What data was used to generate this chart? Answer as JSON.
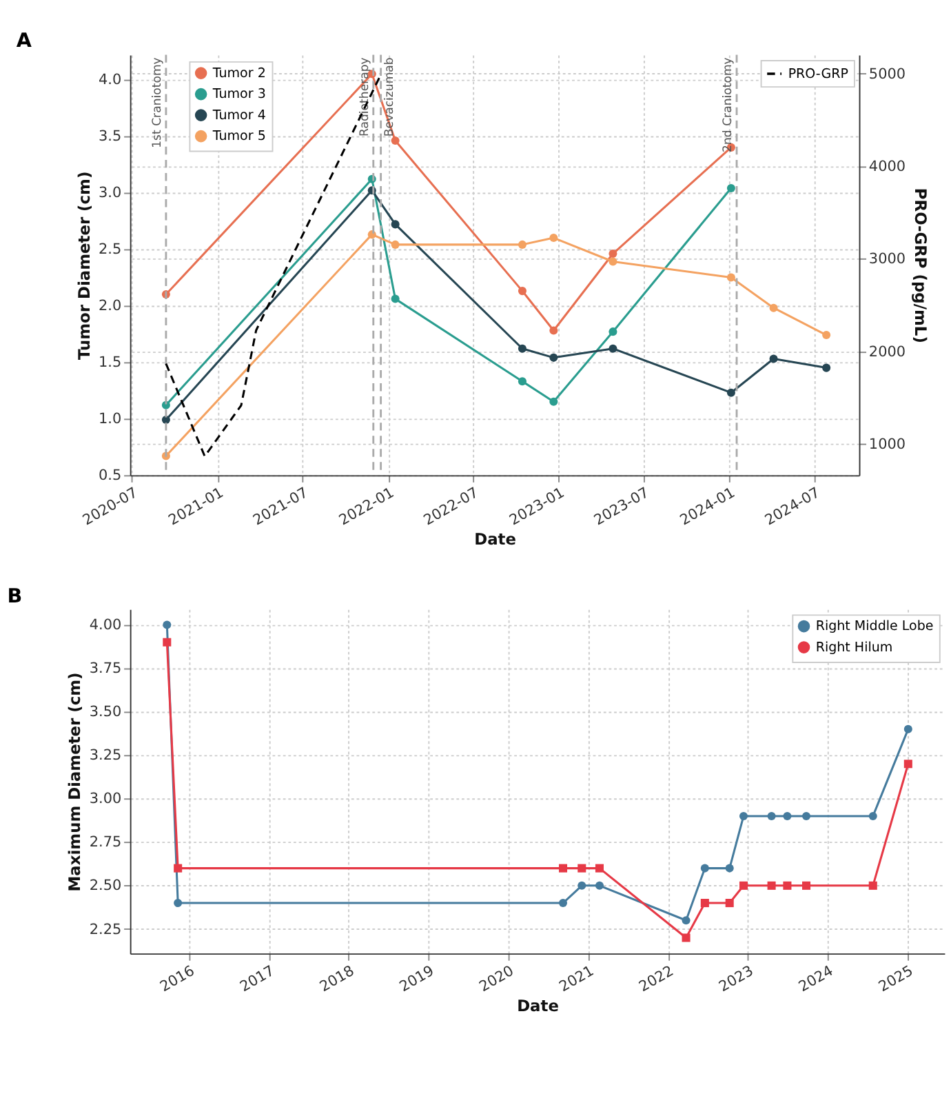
{
  "chart_data": [
    {
      "type": "line",
      "title": "A",
      "xlabel": "Date",
      "ylabel": "Tumor Diameter (cm)",
      "y2label": "PRO-GRP (pg/mL)",
      "xlim": [
        "2020-06-27",
        "2024-10-05"
      ],
      "xticks": [
        {
          "value": "2020-07-01",
          "label": "2020-07"
        },
        {
          "value": "2021-01-01",
          "label": "2021-01"
        },
        {
          "value": "2021-07-01",
          "label": "2021-07"
        },
        {
          "value": "2022-01-01",
          "label": "2022-01"
        },
        {
          "value": "2022-07-01",
          "label": "2022-07"
        },
        {
          "value": "2023-01-01",
          "label": "2023-01"
        },
        {
          "value": "2023-07-01",
          "label": "2023-07"
        },
        {
          "value": "2024-01-01",
          "label": "2024-01"
        },
        {
          "value": "2024-07-01",
          "label": "2024-07"
        }
      ],
      "ylim": [
        0.5,
        4.22
      ],
      "yticks": [
        0.5,
        {
          "value": 1,
          "label": "1.0"
        },
        1.5,
        {
          "value": 2,
          "label": "2.0"
        },
        2.5,
        {
          "value": 3,
          "label": "3.0"
        },
        3.5,
        {
          "value": 4,
          "label": "4.0"
        }
      ],
      "y2lim": [
        666,
        5205
      ],
      "y2ticks": [
        1000,
        2000,
        3000,
        4000,
        5000
      ],
      "grid": true,
      "legend": "top left",
      "marker": "circle",
      "line_style": "solid",
      "series": [
        {
          "name": "Tumor 2",
          "color": "#e76f51",
          "x": [
            "2020-09-12",
            "2021-11-27",
            "2022-01-16",
            "2022-10-15",
            "2022-12-21",
            "2023-04-27",
            "2024-01-05"
          ],
          "values": [
            2.1,
            4.05,
            3.46,
            2.13,
            1.78,
            2.46,
            3.4
          ]
        },
        {
          "name": "Tumor 3",
          "color": "#2a9d8f",
          "x": [
            "2020-09-12",
            "2021-11-27",
            "2022-01-16",
            "2022-10-15",
            "2022-12-21",
            "2023-04-27",
            "2024-01-05"
          ],
          "values": [
            1.12,
            3.12,
            2.06,
            1.33,
            1.15,
            1.77,
            3.04
          ]
        },
        {
          "name": "Tumor 4",
          "color": "#264653",
          "x": [
            "2020-09-12",
            "2021-11-27",
            "2022-01-16",
            "2022-10-15",
            "2022-12-21",
            "2023-04-27",
            "2024-01-05",
            "2024-04-05",
            "2024-07-27"
          ],
          "values": [
            0.99,
            3.02,
            2.72,
            1.62,
            1.54,
            1.62,
            1.23,
            1.53,
            1.45
          ]
        },
        {
          "name": "Tumor 5",
          "color": "#f4a261",
          "x": [
            "2020-09-12",
            "2021-11-27",
            "2022-01-16",
            "2022-10-15",
            "2022-12-21",
            "2023-04-27",
            "2024-01-05",
            "2024-04-05",
            "2024-07-27"
          ],
          "values": [
            0.67,
            2.63,
            2.54,
            2.54,
            2.6,
            2.39,
            2.25,
            1.98,
            1.74
          ]
        },
        {
          "name": "PRO-GRP",
          "color": "#000000",
          "axis": "y2",
          "marker": "none",
          "line_style": "dashed",
          "x": [
            "2020-09-12",
            "2020-12-04",
            "2021-02-20",
            "2021-03-24",
            "2021-12-14"
          ],
          "values": [
            1870,
            870,
            1420,
            2230,
            4970
          ]
        }
      ],
      "ref_lines": [
        {
          "axis": "x",
          "value": "2020-09-12",
          "label": "1st Craniotomy",
          "color": "#aaaaaa",
          "line_style": "dashed"
        },
        {
          "axis": "x",
          "value": "2021-11-30",
          "label": "Radiotherapy",
          "color": "#aaaaaa",
          "line_style": "dashed"
        },
        {
          "axis": "x",
          "value": "2021-12-16",
          "label": "Bevacizumab",
          "color": "#aaaaaa",
          "line_style": "dashed"
        },
        {
          "axis": "x",
          "value": "2024-01-17",
          "label": "2nd Craniotomy",
          "color": "#aaaaaa",
          "line_style": "dashed"
        }
      ]
    },
    {
      "type": "line",
      "title": "B",
      "xlabel": "Date",
      "ylabel": "Maximum Diameter (cm)",
      "xlim": [
        "2015-04-07",
        "2025-06-19"
      ],
      "xticks": [
        "2016",
        "2017",
        "2018",
        "2019",
        "2020",
        "2021",
        "2022",
        "2023",
        "2024",
        "2025"
      ],
      "ylim": [
        2.11,
        4.09
      ],
      "yticks": [
        2.25,
        {
          "value": 2.5,
          "label": "2.50"
        },
        2.75,
        {
          "value": 3.0,
          "label": "3.00"
        },
        3.25,
        {
          "value": 3.5,
          "label": "3.50"
        },
        3.75,
        {
          "value": 4.0,
          "label": "4.00"
        }
      ],
      "grid": true,
      "legend": "top right",
      "line_style": "solid",
      "series": [
        {
          "name": "Right Middle Lobe",
          "color": "#457b9d",
          "marker": "circle",
          "x": [
            "2015-09-23",
            "2015-11-12",
            "2020-09-08",
            "2020-12-03",
            "2021-02-22",
            "2022-03-25",
            "2022-06-19",
            "2022-10-10",
            "2022-12-13",
            "2023-04-20",
            "2023-07-01",
            "2023-09-26",
            "2024-07-27",
            "2025-01-04"
          ],
          "values": [
            4.0,
            2.4,
            2.4,
            2.5,
            2.5,
            2.3,
            2.6,
            2.6,
            2.9,
            2.9,
            2.9,
            2.9,
            2.9,
            3.4
          ]
        },
        {
          "name": "Right Hilum",
          "color": "#e63946",
          "marker": "square",
          "x": [
            "2015-09-23",
            "2015-11-12",
            "2020-09-08",
            "2020-12-03",
            "2021-02-22",
            "2022-03-25",
            "2022-06-19",
            "2022-10-10",
            "2022-12-13",
            "2023-04-20",
            "2023-07-01",
            "2023-09-26",
            "2024-07-27",
            "2025-01-04"
          ],
          "values": [
            3.9,
            2.6,
            2.6,
            2.6,
            2.6,
            2.2,
            2.4,
            2.4,
            2.5,
            2.5,
            2.5,
            2.5,
            2.5,
            3.2
          ]
        }
      ]
    }
  ]
}
